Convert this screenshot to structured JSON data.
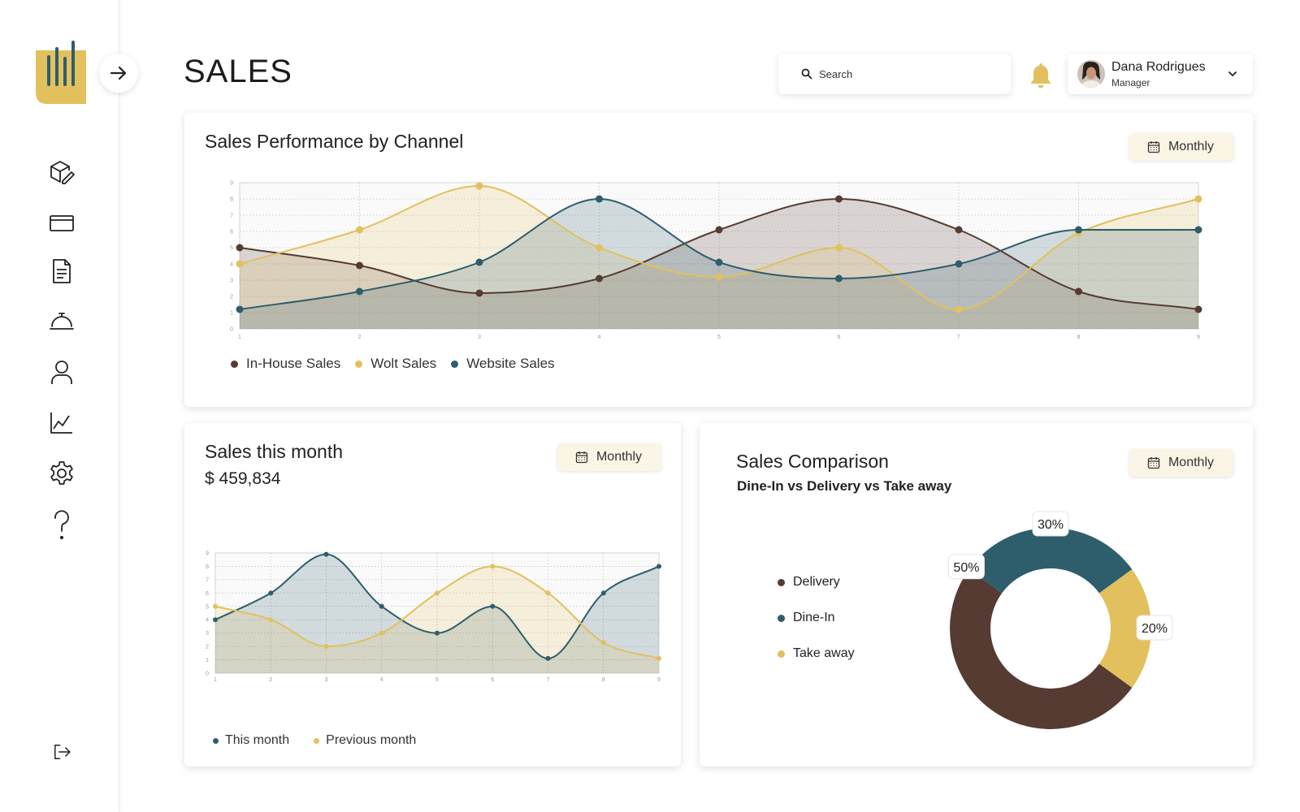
{
  "colors": {
    "gold": "#e2c05e",
    "brown": "#553b32",
    "teal": "#2e5d6c",
    "sidebar_bg": "#ffffff",
    "period_btn_bg": "#fbf5e6"
  },
  "sidebar": {
    "logo": "bars-logo",
    "collapse_icon": "arrow-right-icon",
    "items": [
      {
        "icon": "box-edit-icon",
        "name": "products"
      },
      {
        "icon": "wallet-icon",
        "name": "payments"
      },
      {
        "icon": "document-icon",
        "name": "documents"
      },
      {
        "icon": "cloche-icon",
        "name": "menu"
      },
      {
        "icon": "user-icon",
        "name": "staff"
      },
      {
        "icon": "line-chart-icon",
        "name": "sales"
      },
      {
        "icon": "gear-icon",
        "name": "settings"
      },
      {
        "icon": "question-icon",
        "name": "help"
      }
    ],
    "logout_icon": "logout-icon"
  },
  "header": {
    "title": "SALES",
    "search_placeholder": "Search",
    "notification_icon": "bell-icon",
    "user": {
      "name": "Dana Rodrigues",
      "role": "Manager"
    }
  },
  "channel_card": {
    "title": "Sales Performance by Channel",
    "period": "Monthly",
    "legend": [
      "In-House Sales",
      "Wolt Sales",
      "Website Sales"
    ]
  },
  "month_card": {
    "title": "Sales this month",
    "amount": "$ 459,834",
    "period": "Monthly",
    "legend": [
      "This month",
      "Previous month"
    ]
  },
  "comparison_card": {
    "title": "Sales Comparison",
    "subtitle": "Dine-In vs Delivery vs Take away",
    "period": "Monthly",
    "legend": [
      "Delivery",
      "Dine-In",
      "Take away"
    ]
  },
  "chart_data": [
    {
      "type": "area",
      "x": [
        1,
        2,
        3,
        4,
        5,
        6,
        7,
        8,
        9
      ],
      "ylim": [
        0,
        9
      ],
      "yticks": [
        0,
        1,
        2,
        3,
        4,
        5,
        6,
        7,
        8,
        9
      ],
      "grid": true,
      "legend_placement": "bottom-left",
      "series": [
        {
          "name": "In-House Sales",
          "color": "#553b32",
          "values": [
            5,
            3.9,
            2.2,
            3.1,
            6.1,
            8,
            6.1,
            2.3,
            1.2
          ]
        },
        {
          "name": "Wolt Sales",
          "color": "#e2c05e",
          "values": [
            4,
            6.1,
            8.8,
            5,
            3.2,
            5,
            1.2,
            5.9,
            8
          ]
        },
        {
          "name": "Website Sales",
          "color": "#2e5d6c",
          "values": [
            1.2,
            2.3,
            4.1,
            8,
            4.1,
            3.1,
            4,
            6.1,
            6.1
          ]
        }
      ]
    },
    {
      "type": "area",
      "x": [
        1,
        2,
        3,
        4,
        5,
        6,
        7,
        8,
        9
      ],
      "ylim": [
        0,
        9
      ],
      "yticks": [
        0,
        1,
        2,
        3,
        4,
        5,
        6,
        7,
        8,
        9
      ],
      "grid": true,
      "legend_placement": "bottom-left",
      "series": [
        {
          "name": "This month",
          "color": "#2e5d6c",
          "values": [
            4,
            6,
            8.9,
            5,
            3,
            5,
            1.1,
            6,
            8
          ]
        },
        {
          "name": "Previous month",
          "color": "#e2c05e",
          "values": [
            5,
            4,
            2,
            3,
            6,
            8,
            6,
            2.3,
            1.1
          ]
        }
      ]
    },
    {
      "type": "pie",
      "variant": "donut",
      "legend_placement": "left",
      "labels": [
        "Delivery",
        "Dine-In",
        "Take away"
      ],
      "values": [
        50,
        30,
        20
      ],
      "value_labels": [
        "50%",
        "30%",
        "20%"
      ],
      "colors": [
        "#553b32",
        "#2e5d6c",
        "#e2c05e"
      ]
    }
  ]
}
